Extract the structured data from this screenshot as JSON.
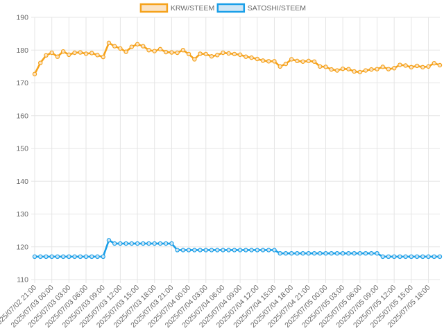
{
  "chart_data": {
    "type": "line",
    "title": "",
    "xlabel": "",
    "ylabel": "",
    "ylim": [
      110,
      190
    ],
    "y_ticks": [
      110,
      120,
      130,
      140,
      150,
      160,
      170,
      180,
      190
    ],
    "grid": true,
    "legend_position": "top",
    "x_tick_labels": [
      "2025/07/02 21:00",
      "2025/07/03 00:00",
      "2025/07/03 03:00",
      "2025/07/03 06:00",
      "2025/07/03 09:00",
      "2025/07/03 12:00",
      "2025/07/03 15:00",
      "2025/07/03 18:00",
      "2025/07/03 21:00",
      "2025/07/04 00:00",
      "2025/07/04 03:00",
      "2025/07/04 06:00",
      "2025/07/04 09:00",
      "2025/07/04 12:00",
      "2025/07/04 15:00",
      "2025/07/04 18:00",
      "2025/07/04 21:00",
      "2025/07/05 00:00",
      "2025/07/05 03:00",
      "2025/07/05 06:00",
      "2025/07/05 09:00",
      "2025/07/05 12:00",
      "2025/07/05 15:00",
      "2025/07/05 18:00"
    ],
    "series": [
      {
        "name": "KRW/STEEM",
        "color": "#f5a21b",
        "fill": "#fbe3c4",
        "values": [
          172.7,
          176.1,
          178.4,
          179.2,
          178.0,
          179.6,
          178.6,
          179.2,
          179.3,
          178.9,
          179.1,
          178.5,
          177.9,
          182.2,
          181.2,
          180.5,
          179.5,
          181.0,
          181.8,
          181.2,
          180.0,
          179.7,
          180.3,
          179.4,
          179.3,
          179.2,
          180.0,
          178.8,
          177.2,
          178.9,
          178.8,
          178.1,
          178.5,
          179.2,
          179.0,
          178.8,
          178.6,
          178.0,
          177.7,
          177.3,
          176.8,
          176.6,
          176.6,
          175.0,
          175.8,
          177.2,
          176.7,
          176.5,
          176.7,
          176.5,
          175.0,
          174.9,
          174.1,
          173.8,
          174.3,
          174.2,
          173.5,
          173.3,
          173.8,
          174.1,
          174.2,
          174.9,
          174.2,
          174.5,
          175.5,
          175.3,
          174.8,
          175.2,
          174.8,
          175.0,
          176.0,
          175.4
        ]
      },
      {
        "name": "SATOSHI/STEEM",
        "color": "#1a9fe8",
        "fill": "#cfe6f5",
        "values": [
          117,
          117,
          117,
          117,
          117,
          117,
          117,
          117,
          117,
          117,
          117,
          117,
          117,
          122,
          121,
          121,
          121,
          121,
          121,
          121,
          121,
          121,
          121,
          121,
          121,
          119,
          119,
          119,
          119,
          119,
          119,
          119,
          119,
          119,
          119,
          119,
          119,
          119,
          119,
          119,
          119,
          119,
          119,
          118,
          118,
          118,
          118,
          118,
          118,
          118,
          118,
          118,
          118,
          118,
          118,
          118,
          118,
          118,
          118,
          118,
          118,
          117,
          117,
          117,
          117,
          117,
          117,
          117,
          117,
          117,
          117,
          117
        ]
      }
    ]
  }
}
